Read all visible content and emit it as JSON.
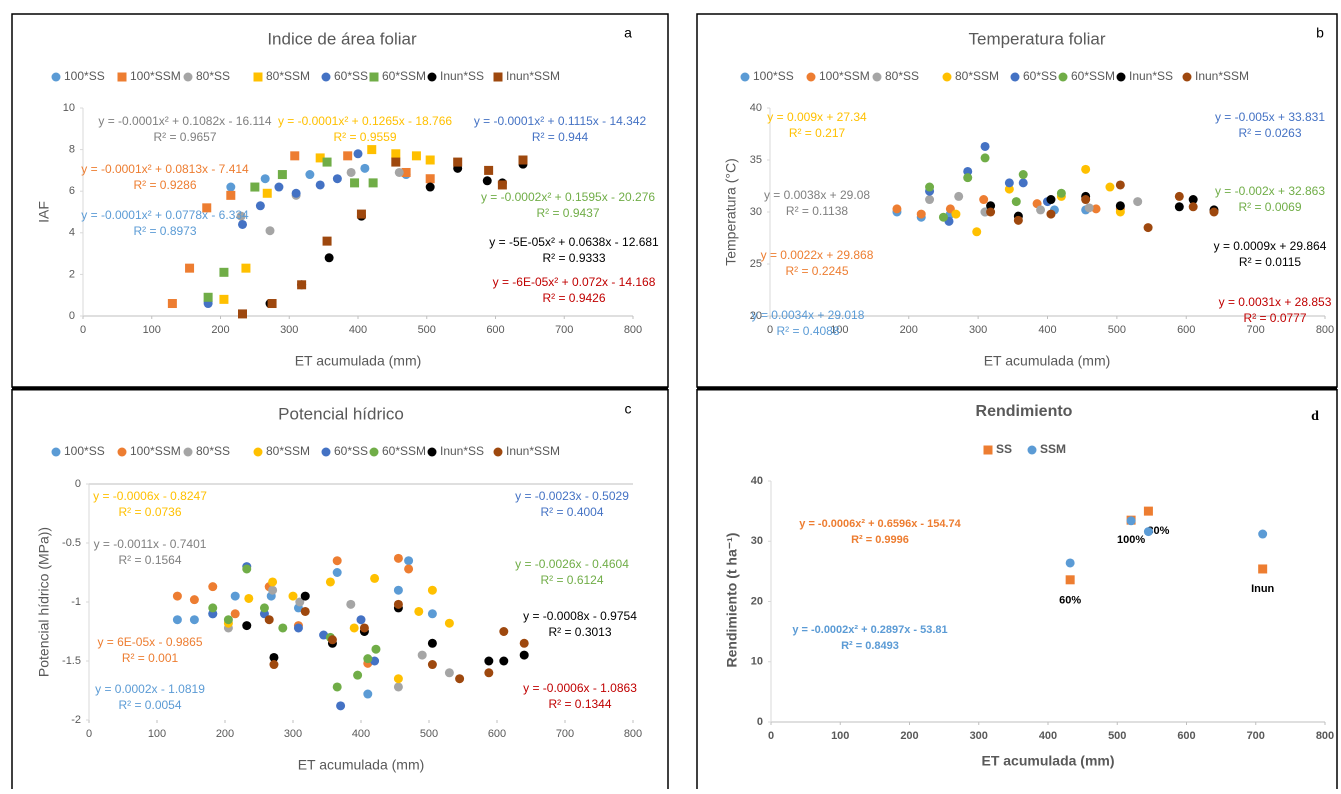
{
  "chart_data": [
    {
      "type": "scatter",
      "title": "Indice de área foliar",
      "panel_label": "a",
      "x_label": "ET acumulada (mm)",
      "y_label": "IAF",
      "xlim": [
        0,
        800
      ],
      "xticks": [
        0,
        100,
        200,
        300,
        400,
        500,
        600,
        700,
        800
      ],
      "ylim": [
        0,
        10
      ],
      "yticks": [
        0,
        2,
        4,
        6,
        8,
        10
      ],
      "series": [
        {
          "name": "100*SS",
          "color": "#5b9bd5",
          "marker": "circle",
          "x": [
            182,
            215,
            265,
            330,
            410,
            470
          ],
          "values": [
            0.7,
            6.2,
            6.6,
            6.8,
            7.1,
            6.8
          ]
        },
        {
          "name": "100*SSM",
          "color": "#ed7d31",
          "marker": "square",
          "x": [
            130,
            155,
            180,
            215,
            308,
            385,
            470,
            505
          ],
          "values": [
            0.6,
            2.3,
            5.2,
            5.8,
            7.7,
            7.7,
            6.9,
            6.6
          ]
        },
        {
          "name": "80*SS",
          "color": "#a5a5a5",
          "marker": "circle",
          "x": [
            230,
            272,
            310,
            390,
            460
          ],
          "values": [
            4.8,
            4.1,
            5.8,
            6.9,
            6.9
          ]
        },
        {
          "name": "80*SSM",
          "color": "#ffc000",
          "marker": "square",
          "x": [
            205,
            237,
            268,
            345,
            420,
            455,
            485,
            505
          ],
          "values": [
            0.8,
            2.3,
            5.9,
            7.6,
            8.0,
            7.8,
            7.7,
            7.5
          ]
        },
        {
          "name": "60*SS",
          "color": "#4472c4",
          "marker": "circle",
          "x": [
            182,
            232,
            258,
            285,
            310,
            345,
            370,
            400
          ],
          "values": [
            0.6,
            4.4,
            5.3,
            6.2,
            5.9,
            6.3,
            6.6,
            7.8
          ]
        },
        {
          "name": "60*SSM",
          "color": "#70ad47",
          "marker": "square",
          "x": [
            182,
            205,
            250,
            290,
            355,
            395,
            422
          ],
          "values": [
            0.9,
            2.1,
            6.2,
            6.8,
            7.4,
            6.4,
            6.4
          ]
        },
        {
          "name": "Inun*SS",
          "color": "#000000",
          "marker": "circle",
          "x": [
            272,
            318,
            358,
            405,
            505,
            545,
            588,
            610,
            640
          ],
          "values": [
            0.6,
            1.5,
            2.8,
            4.8,
            6.2,
            7.1,
            6.5,
            6.4,
            7.3
          ]
        },
        {
          "name": "Inun*SSM",
          "color": "#9e480e",
          "marker": "square",
          "x": [
            232,
            275,
            318,
            355,
            405,
            455,
            545,
            590,
            610,
            640
          ],
          "values": [
            0.1,
            0.6,
            1.5,
            3.6,
            4.9,
            7.4,
            7.4,
            7.0,
            6.3,
            7.5
          ]
        }
      ],
      "annotations": [
        {
          "lines": [
            "y = -0.0001x² + 0.1082x - 16.114",
            "R² = 0.9657"
          ],
          "color": "#7f7f7f"
        },
        {
          "lines": [
            "y = -0.0001x² + 0.0813x - 7.414",
            "R² = 0.9286"
          ],
          "color": "#ed7d31"
        },
        {
          "lines": [
            "y = -0.0001x² + 0.0778x - 6.334",
            "R² = 0.8973"
          ],
          "color": "#5b9bd5"
        },
        {
          "lines": [
            "y = -0.0001x² + 0.1265x - 18.766",
            "R² = 0.9559"
          ],
          "color": "#ffc000"
        },
        {
          "lines": [
            "y = -0.0001x² + 0.1115x - 14.342",
            "R² = 0.944"
          ],
          "color": "#4472c4"
        },
        {
          "lines": [
            "y = -0.0002x² + 0.1595x - 20.276",
            "R² = 0.9437"
          ],
          "color": "#70ad47"
        },
        {
          "lines": [
            "y = -5E-05x² + 0.0638x - 12.681",
            "R² = 0.9333"
          ],
          "color": "#000000"
        },
        {
          "lines": [
            "y = -6E-05x² + 0.072x - 14.168",
            "R² = 0.9426"
          ],
          "color": "#c00000"
        }
      ]
    },
    {
      "type": "scatter",
      "title": "Temperatura foliar",
      "panel_label": "b",
      "x_label": "ET acumulada (mm)",
      "y_label": "Temperatura (°C)",
      "xlim": [
        0,
        800
      ],
      "xticks": [
        0,
        100,
        200,
        300,
        400,
        500,
        600,
        700,
        800
      ],
      "ylim": [
        20,
        40
      ],
      "yticks": [
        20,
        25,
        30,
        35,
        40
      ],
      "series": [
        {
          "name": "100*SS",
          "color": "#5b9bd5",
          "marker": "circle",
          "x": [
            183,
            218,
            260,
            310,
            410,
            455,
            505
          ],
          "values": [
            30,
            29.5,
            29.8,
            30,
            30.2,
            30.2,
            30.5
          ]
        },
        {
          "name": "100*SSM",
          "color": "#ed7d31",
          "marker": "circle",
          "x": [
            183,
            218,
            260,
            308,
            385,
            470,
            505
          ],
          "values": [
            30.3,
            29.8,
            30.3,
            31.2,
            30.8,
            30.3,
            30.3
          ]
        },
        {
          "name": "80*SS",
          "color": "#a5a5a5",
          "marker": "circle",
          "x": [
            230,
            272,
            310,
            390,
            460,
            530
          ],
          "values": [
            31.2,
            31.5,
            30,
            30.2,
            30.4,
            31
          ]
        },
        {
          "name": "80*SSM",
          "color": "#ffc000",
          "marker": "circle",
          "x": [
            268,
            298,
            345,
            420,
            455,
            490,
            505
          ],
          "values": [
            29.8,
            28.1,
            32.2,
            31.5,
            34.1,
            32.4,
            30
          ]
        },
        {
          "name": "60*SS",
          "color": "#4472c4",
          "marker": "circle",
          "x": [
            230,
            258,
            285,
            310,
            345,
            365,
            400
          ],
          "values": [
            32,
            29.1,
            33.9,
            36.3,
            32.8,
            32.8,
            31
          ]
        },
        {
          "name": "60*SSM",
          "color": "#70ad47",
          "marker": "circle",
          "x": [
            230,
            250,
            285,
            310,
            355,
            365,
            420
          ],
          "values": [
            32.4,
            29.5,
            33.3,
            35.2,
            31,
            33.6,
            31.8
          ]
        },
        {
          "name": "Inun*SS",
          "color": "#000000",
          "marker": "circle",
          "x": [
            318,
            358,
            405,
            455,
            505,
            590,
            610,
            640
          ],
          "values": [
            30.6,
            29.6,
            31.2,
            31.5,
            30.6,
            30.5,
            31.2,
            30.2
          ]
        },
        {
          "name": "Inun*SSM",
          "color": "#9e480e",
          "marker": "circle",
          "x": [
            318,
            358,
            405,
            455,
            505,
            545,
            590,
            610,
            640
          ],
          "values": [
            30,
            29.2,
            29.8,
            31.2,
            32.6,
            28.5,
            31.5,
            30.5,
            30
          ]
        }
      ],
      "annotations": [
        {
          "lines": [
            "y = 0.009x + 27.34",
            "R² = 0.217"
          ],
          "color": "#ffc000"
        },
        {
          "lines": [
            "y = 0.0038x + 29.08",
            "R² = 0.1138"
          ],
          "color": "#7f7f7f"
        },
        {
          "lines": [
            "y = 0.0022x + 29.868",
            "R² = 0.2245"
          ],
          "color": "#ed7d31"
        },
        {
          "lines": [
            "y = 0.0034x + 29.018",
            "R² = 0.4088"
          ],
          "color": "#5b9bd5"
        },
        {
          "lines": [
            "y = -0.005x + 33.831",
            "R² = 0.0263"
          ],
          "color": "#4472c4"
        },
        {
          "lines": [
            "y = -0.002x + 32.863",
            "R² = 0.0069"
          ],
          "color": "#70ad47"
        },
        {
          "lines": [
            "y = 0.0009x + 29.864",
            "R² = 0.0115"
          ],
          "color": "#000000"
        },
        {
          "lines": [
            "y = 0.0031x + 28.853",
            "R² = 0.0777"
          ],
          "color": "#c00000"
        }
      ]
    },
    {
      "type": "scatter",
      "title": "Potencial hídrico",
      "panel_label": "c",
      "x_label": "ET acumulada (mm)",
      "y_label": "Potencial hídrico (MPa))",
      "xlim": [
        0,
        800
      ],
      "xticks": [
        0,
        100,
        200,
        300,
        400,
        500,
        600,
        700,
        800
      ],
      "ylim": [
        -2,
        0
      ],
      "yticks": [
        -2,
        -1.5,
        -1,
        -0.5,
        0
      ],
      "series": [
        {
          "name": "100*SS",
          "color": "#5b9bd5",
          "marker": "circle",
          "x": [
            130,
            155,
            182,
            215,
            268,
            308,
            365,
            410,
            455,
            470,
            505
          ],
          "values": [
            -1.15,
            -1.15,
            -1.1,
            -0.95,
            -0.95,
            -1.05,
            -0.75,
            -1.78,
            -0.9,
            -0.65,
            -1.1
          ]
        },
        {
          "name": "100*SSM",
          "color": "#ed7d31",
          "marker": "circle",
          "x": [
            130,
            155,
            182,
            215,
            265,
            308,
            365,
            410,
            455,
            470
          ],
          "values": [
            -0.95,
            -0.98,
            -0.87,
            -1.1,
            -0.87,
            -1.2,
            -0.65,
            -1.52,
            -0.63,
            -0.72
          ]
        },
        {
          "name": "80*SS",
          "color": "#a5a5a5",
          "marker": "circle",
          "x": [
            205,
            270,
            310,
            385,
            455,
            490,
            530
          ],
          "values": [
            -1.22,
            -0.9,
            -1.0,
            -1.02,
            -1.72,
            -1.45,
            -1.6
          ]
        },
        {
          "name": "80*SSM",
          "color": "#ffc000",
          "marker": "circle",
          "x": [
            205,
            235,
            270,
            300,
            355,
            390,
            420,
            455,
            485,
            505,
            530
          ],
          "values": [
            -1.18,
            -0.97,
            -0.83,
            -0.95,
            -0.83,
            -1.22,
            -0.8,
            -1.65,
            -1.08,
            -0.9,
            -1.18
          ]
        },
        {
          "name": "60*SS",
          "color": "#4472c4",
          "marker": "circle",
          "x": [
            182,
            232,
            258,
            308,
            345,
            370,
            400,
            420
          ],
          "values": [
            -1.1,
            -0.7,
            -1.1,
            -1.22,
            -1.28,
            -1.88,
            -1.15,
            -1.5
          ]
        },
        {
          "name": "60*SSM",
          "color": "#70ad47",
          "marker": "circle",
          "x": [
            182,
            205,
            232,
            258,
            285,
            355,
            365,
            395,
            410,
            422
          ],
          "values": [
            -1.05,
            -1.15,
            -0.72,
            -1.05,
            -1.22,
            -1.3,
            -1.72,
            -1.62,
            -1.48,
            -1.4
          ]
        },
        {
          "name": "Inun*SS",
          "color": "#000000",
          "marker": "circle",
          "x": [
            232,
            272,
            318,
            358,
            405,
            455,
            505,
            588,
            610,
            640
          ],
          "values": [
            -1.2,
            -1.47,
            -0.95,
            -1.35,
            -1.25,
            -1.05,
            -1.35,
            -1.5,
            -1.5,
            -1.45
          ]
        },
        {
          "name": "Inun*SSM",
          "color": "#9e480e",
          "marker": "circle",
          "x": [
            265,
            272,
            318,
            358,
            405,
            455,
            505,
            545,
            588,
            610,
            640
          ],
          "values": [
            -1.15,
            -1.53,
            -1.08,
            -1.32,
            -1.22,
            -1.02,
            -1.53,
            -1.65,
            -1.6,
            -1.25,
            -1.35
          ]
        }
      ],
      "annotations": [
        {
          "lines": [
            "y = -0.0006x - 0.8247",
            "R² = 0.0736"
          ],
          "color": "#ffc000"
        },
        {
          "lines": [
            "y = -0.0011x - 0.7401",
            "R² = 0.1564"
          ],
          "color": "#7f7f7f"
        },
        {
          "lines": [
            "y = 6E-05x - 0.9865",
            "R² = 0.001"
          ],
          "color": "#ed7d31"
        },
        {
          "lines": [
            "y = 0.0002x - 1.0819",
            "R² = 0.0054"
          ],
          "color": "#5b9bd5"
        },
        {
          "lines": [
            "y = -0.0023x - 0.5029",
            "R² = 0.4004"
          ],
          "color": "#4472c4"
        },
        {
          "lines": [
            "y = -0.0026x - 0.4604",
            "R² = 0.6124"
          ],
          "color": "#70ad47"
        },
        {
          "lines": [
            "y = -0.0008x - 0.9754",
            "R² = 0.3013"
          ],
          "color": "#000000"
        },
        {
          "lines": [
            "y = -0.0006x - 1.0863",
            "R² = 0.1344"
          ],
          "color": "#c00000"
        }
      ]
    },
    {
      "type": "scatter",
      "title": "Rendimiento",
      "panel_label": "d",
      "x_label": "ET acumulada (mm)",
      "y_label": "Rendimiento (t ha⁻¹)",
      "xlim": [
        0,
        800
      ],
      "xticks": [
        0,
        100,
        200,
        300,
        400,
        500,
        600,
        700,
        800
      ],
      "ylim": [
        0,
        40
      ],
      "yticks": [
        0,
        10,
        20,
        30,
        40
      ],
      "series": [
        {
          "name": "SS",
          "color": "#ed7d31",
          "marker": "square",
          "x": [
            432,
            520,
            545,
            710
          ],
          "values": [
            23.6,
            33.5,
            35,
            25.4
          ],
          "point_labels": [
            "60%",
            "100%",
            "80%",
            "Inun"
          ]
        },
        {
          "name": "SSM",
          "color": "#5b9bd5",
          "marker": "circle",
          "x": [
            432,
            520,
            545,
            710
          ],
          "values": [
            26.4,
            33.4,
            31.6,
            31.2
          ]
        }
      ],
      "annotations": [
        {
          "lines": [
            "y = -0.0006x² + 0.6596x - 154.74",
            "R² = 0.9996"
          ],
          "color": "#ed7d31"
        },
        {
          "lines": [
            "y = -0.0002x² + 0.2897x - 53.81",
            "R² = 0.8493"
          ],
          "color": "#5b9bd5"
        }
      ]
    }
  ]
}
